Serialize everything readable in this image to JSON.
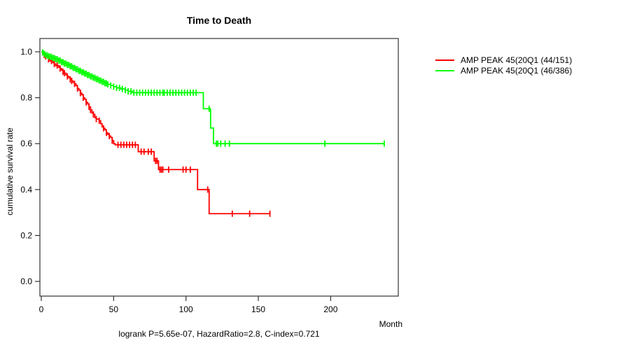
{
  "colors": {
    "axis": "#333333",
    "text": "#000000",
    "background": "#ffffff",
    "series_red": "#ff0000",
    "series_green": "#00ff00"
  },
  "chart_data": {
    "type": "line",
    "subtype": "kaplan-meier-step",
    "title": "Time to Death",
    "xlabel": "Month",
    "ylabel": "cumulative survival rate",
    "annotation": "logrank P=5.65e-07, HazardRatio=2.8, C-index=0.721",
    "xlim": [
      0,
      247
    ],
    "ylim": [
      0.0,
      1.0
    ],
    "xticks": [
      0,
      50,
      100,
      150,
      200
    ],
    "yticks": [
      0.0,
      0.2,
      0.4,
      0.6,
      0.8,
      1.0
    ],
    "grid": false,
    "legend_position": "right-outside",
    "series": [
      {
        "name": "AMP PEAK 45(20Q1 (44/151)",
        "color": "#ff0000",
        "end_month": 158,
        "steps": [
          [
            0,
            1.0
          ],
          [
            1,
            0.993
          ],
          [
            2,
            0.987
          ],
          [
            3,
            0.98
          ],
          [
            5,
            0.967
          ],
          [
            6,
            0.96
          ],
          [
            8,
            0.953
          ],
          [
            9,
            0.947
          ],
          [
            10,
            0.94
          ],
          [
            12,
            0.933
          ],
          [
            13,
            0.927
          ],
          [
            14,
            0.92
          ],
          [
            15,
            0.913
          ],
          [
            16,
            0.907
          ],
          [
            17,
            0.9
          ],
          [
            18,
            0.893
          ],
          [
            19,
            0.887
          ],
          [
            20,
            0.88
          ],
          [
            21,
            0.873
          ],
          [
            22,
            0.867
          ],
          [
            23,
            0.86
          ],
          [
            24,
            0.853
          ],
          [
            25,
            0.84
          ],
          [
            26,
            0.833
          ],
          [
            27,
            0.82
          ],
          [
            28,
            0.813
          ],
          [
            29,
            0.8
          ],
          [
            30,
            0.793
          ],
          [
            31,
            0.78
          ],
          [
            32,
            0.773
          ],
          [
            33,
            0.76
          ],
          [
            34,
            0.747
          ],
          [
            35,
            0.733
          ],
          [
            36,
            0.727
          ],
          [
            37,
            0.713
          ],
          [
            38,
            0.707
          ],
          [
            40,
            0.7
          ],
          [
            41,
            0.687
          ],
          [
            42,
            0.673
          ],
          [
            43,
            0.667
          ],
          [
            44,
            0.66
          ],
          [
            45,
            0.647
          ],
          [
            46,
            0.64
          ],
          [
            47,
            0.633
          ],
          [
            48,
            0.627
          ],
          [
            49,
            0.613
          ],
          [
            50,
            0.6
          ],
          [
            51,
            0.595
          ],
          [
            67,
            0.565
          ],
          [
            78,
            0.525
          ],
          [
            81,
            0.487
          ],
          [
            108,
            0.4
          ],
          [
            116,
            0.295
          ]
        ],
        "censor_months": [
          2,
          3,
          5,
          7,
          9,
          11,
          13,
          15,
          16,
          18,
          20,
          21,
          23,
          25,
          27,
          29,
          31,
          33,
          34,
          36,
          38,
          40,
          43,
          45,
          47,
          49,
          53,
          55,
          57,
          59,
          61,
          63,
          65,
          69,
          71,
          74,
          76,
          79,
          80,
          82,
          83,
          84,
          88,
          98,
          100,
          103,
          115,
          132,
          144,
          158
        ]
      },
      {
        "name": "AMP PEAK 45(20Q1 (46/386)",
        "color": "#00ff00",
        "end_month": 237,
        "steps": [
          [
            0,
            1.0
          ],
          [
            1,
            0.997
          ],
          [
            2,
            0.992
          ],
          [
            3,
            0.987
          ],
          [
            4,
            0.984
          ],
          [
            5,
            0.981
          ],
          [
            6,
            0.978
          ],
          [
            8,
            0.973
          ],
          [
            10,
            0.968
          ],
          [
            12,
            0.962
          ],
          [
            14,
            0.955
          ],
          [
            16,
            0.949
          ],
          [
            18,
            0.943
          ],
          [
            20,
            0.937
          ],
          [
            22,
            0.93
          ],
          [
            24,
            0.924
          ],
          [
            26,
            0.917
          ],
          [
            28,
            0.911
          ],
          [
            30,
            0.905
          ],
          [
            32,
            0.899
          ],
          [
            34,
            0.893
          ],
          [
            36,
            0.887
          ],
          [
            38,
            0.881
          ],
          [
            40,
            0.875
          ],
          [
            42,
            0.869
          ],
          [
            44,
            0.863
          ],
          [
            46,
            0.858
          ],
          [
            48,
            0.853
          ],
          [
            50,
            0.848
          ],
          [
            52,
            0.843
          ],
          [
            55,
            0.838
          ],
          [
            58,
            0.833
          ],
          [
            60,
            0.828
          ],
          [
            63,
            0.822
          ],
          [
            112,
            0.752
          ],
          [
            117,
            0.668
          ],
          [
            119,
            0.6
          ]
        ],
        "censor_months": [
          1,
          2,
          3,
          4,
          5,
          6,
          7,
          8,
          9,
          10,
          11,
          12,
          13,
          14,
          15,
          16,
          17,
          18,
          19,
          20,
          21,
          22,
          23,
          24,
          25,
          26,
          27,
          28,
          29,
          30,
          31,
          32,
          33,
          34,
          35,
          36,
          37,
          38,
          39,
          40,
          41,
          42,
          43,
          44,
          45,
          46,
          48,
          50,
          52,
          54,
          56,
          58,
          60,
          62,
          64,
          66,
          68,
          70,
          72,
          74,
          76,
          78,
          80,
          82,
          84,
          85,
          87,
          89,
          91,
          93,
          95,
          97,
          99,
          101,
          103,
          105,
          107,
          116,
          121,
          122,
          124,
          127,
          130,
          196,
          237
        ]
      }
    ]
  }
}
